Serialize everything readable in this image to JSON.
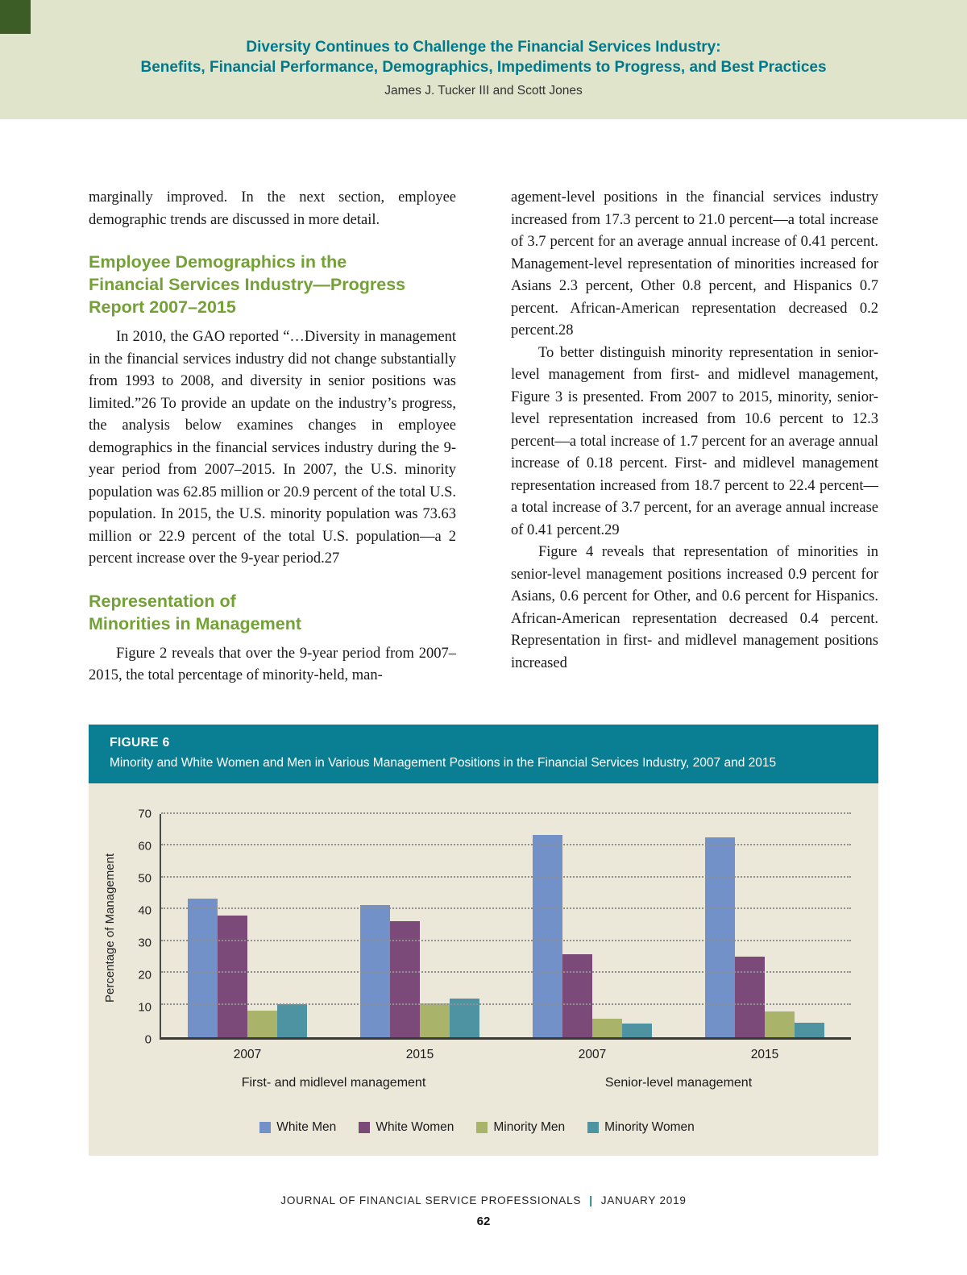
{
  "header": {
    "title_line1": "Diversity Continues to Challenge the Financial Services Industry:",
    "title_line2": "Benefits, Financial Performance, Demographics, Impediments to Progress, and Best Practices",
    "authors": "James J. Tucker III and Scott Jones"
  },
  "article": {
    "left": {
      "p1": "marginally improved. In the next section, employee demographic trends are discussed in more detail.",
      "h1": [
        "Employee Demographics in the",
        "Financial Services Industry—Progress",
        "Report 2007–2015"
      ],
      "p2": "In 2010, the GAO reported “…Diversity in management in the financial services industry did not change substantially from 1993 to 2008, and diversity in senior positions was limited.”26 To provide an update on the industry’s progress, the analysis below examines changes in employee demographics in the financial services industry during the 9-year period from 2007–2015. In 2007, the U.S. minority population was 62.85 million or 20.9 percent of the total U.S. population. In 2015, the U.S. minority population was 73.63 million or 22.9 percent of the total U.S. population—a 2 percent increase over the 9-year period.27",
      "h2": [
        "Representation of",
        "Minorities in Management"
      ],
      "p3": "Figure 2 reveals that over the 9-year period from 2007–2015, the total percentage of minority-held, man-"
    },
    "right": {
      "p1": "agement-level positions in the financial services industry increased from 17.3 percent to 21.0 percent—a total increase of 3.7 percent for an average annual increase of 0.41 percent. Management-level representation of minorities increased for Asians 2.3 percent, Other 0.8 percent, and Hispanics 0.7 percent. African-American representation decreased 0.2 percent.28",
      "p2": "To better distinguish minority representation in senior-level management from first- and midlevel management, Figure 3 is presented. From 2007 to 2015, minority, senior-level representation increased from 10.6 percent to 12.3 percent—a total increase of 1.7 percent for an average annual increase of 0.18 percent. First- and midlevel management representation increased from 18.7 percent to 22.4 percent—a total increase of 3.7 percent, for an average annual increase of 0.41 percent.29",
      "p3": "Figure 4 reveals that representation of minorities in senior-level management positions increased 0.9 percent for Asians, 0.6 percent for Other, and 0.6 percent for Hispanics. African-American representation decreased 0.4 percent. Representation in first- and midlevel management positions increased"
    }
  },
  "figure": {
    "label": "FIGURE 6",
    "title": "Minority and White Women and Men in Various Management Positions in the Financial Services Industry, 2007 and 2015"
  },
  "chart_data": {
    "type": "bar",
    "title": "FIGURE 6",
    "subtitle": "Minority and White Women and Men in Various Management Positions in the Financial Services Industry, 2007 and 2015",
    "ylabel": "Percentage of Management",
    "xlabel": "",
    "ylim": [
      0,
      70
    ],
    "ytick_step": 10,
    "grid": "horizontal dotted",
    "legend_position": "bottom",
    "series_names": [
      "White Men",
      "White Women",
      "Minority Men",
      "Minority Women"
    ],
    "series_colors": [
      "#7191c8",
      "#7c4a78",
      "#a9b46a",
      "#4e93a2"
    ],
    "groups": [
      {
        "label": "First- and midlevel management",
        "clusters": [
          {
            "x": "2007",
            "values": [
              43.4,
              38.0,
              8.2,
              10.2
            ]
          },
          {
            "x": "2015",
            "values": [
              41.4,
              36.2,
              10.5,
              11.9
            ]
          }
        ]
      },
      {
        "label": "Senior-level management",
        "clusters": [
          {
            "x": "2007",
            "values": [
              63.4,
              26.0,
              5.8,
              4.2
            ]
          },
          {
            "x": "2015",
            "values": [
              62.6,
              25.1,
              8.0,
              4.3
            ]
          }
        ]
      }
    ]
  },
  "footer": {
    "journal": "JOURNAL OF FINANCIAL SERVICE PROFESSIONALS",
    "separator": "|",
    "issue": "JANUARY 2019",
    "page_number": "62"
  }
}
